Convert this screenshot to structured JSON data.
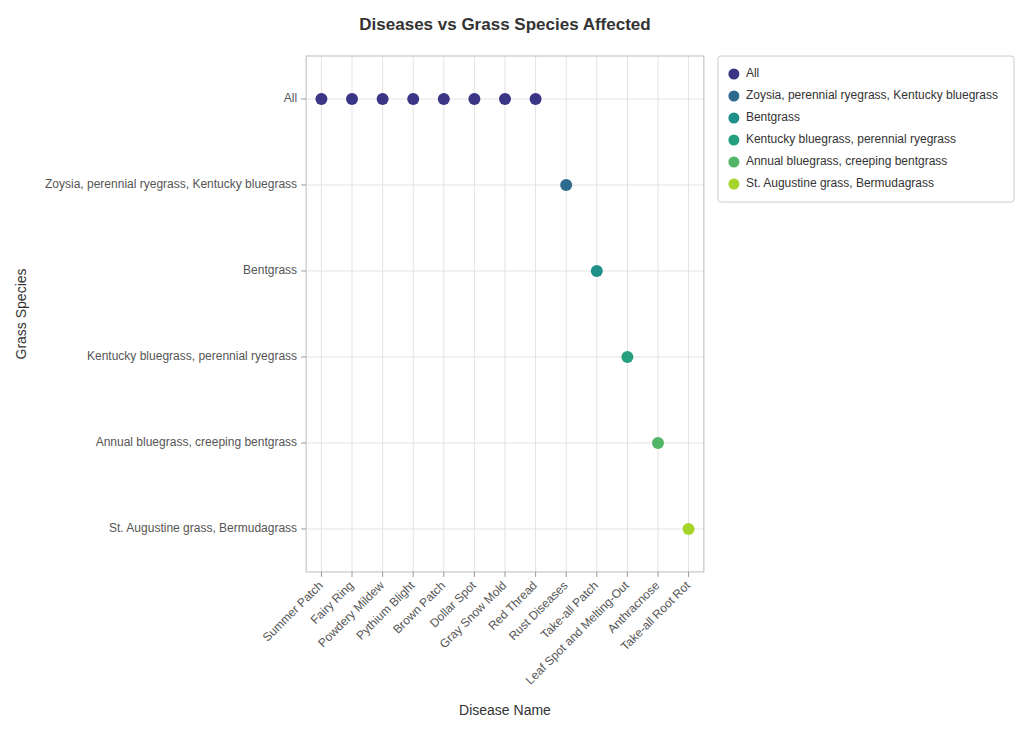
{
  "chart_data": {
    "type": "scatter",
    "title": "Diseases vs Grass Species Affected",
    "x_label": "Disease Name",
    "y_label": "Grass Species",
    "categories": [
      "Summer Patch",
      "Fairy Ring",
      "Powdery Mildew",
      "Pythium Blight",
      "Brown Patch",
      "Dollar Spot",
      "Gray Snow Mold",
      "Red Thread",
      "Rust Diseases",
      "Take-all Patch",
      "Leaf Spot and Melting-Out",
      "Anthracnose",
      "Take-all Root Rot"
    ],
    "y_categories": [
      "All",
      "Zoysia, perennial ryegrass, Kentucky bluegrass",
      "Bentgrass",
      "Kentucky bluegrass, perennial ryegrass",
      "Annual bluegrass, creeping bentgrass",
      "St. Augustine grass, Bermudagrass"
    ],
    "series": [
      {
        "name": "All",
        "color": "#3b3585",
        "x": [
          "Summer Patch",
          "Fairy Ring",
          "Powdery Mildew",
          "Pythium Blight",
          "Brown Patch",
          "Dollar Spot",
          "Gray Snow Mold",
          "Red Thread"
        ],
        "y": [
          "All",
          "All",
          "All",
          "All",
          "All",
          "All",
          "All",
          "All"
        ]
      },
      {
        "name": "Zoysia, perennial ryegrass, Kentucky bluegrass",
        "color": "#2f6b8e",
        "x": [
          "Rust Diseases"
        ],
        "y": [
          "Zoysia, perennial ryegrass, Kentucky bluegrass"
        ]
      },
      {
        "name": "Bentgrass",
        "color": "#1f9088",
        "x": [
          "Take-all Patch"
        ],
        "y": [
          "Bentgrass"
        ]
      },
      {
        "name": "Kentucky bluegrass, perennial ryegrass",
        "color": "#25a07c",
        "x": [
          "Leaf Spot and Melting-Out"
        ],
        "y": [
          "Kentucky bluegrass, perennial ryegrass"
        ]
      },
      {
        "name": "Annual bluegrass, creeping bentgrass",
        "color": "#52b567",
        "x": [
          "Anthracnose"
        ],
        "y": [
          "Annual bluegrass, creeping bentgrass"
        ]
      },
      {
        "name": "St. Augustine grass, Bermudagrass",
        "color": "#a5d52a",
        "x": [
          "Take-all Root Rot"
        ],
        "y": [
          "St. Augustine grass, Bermudagrass"
        ]
      }
    ],
    "grid": true,
    "legend": "right"
  }
}
